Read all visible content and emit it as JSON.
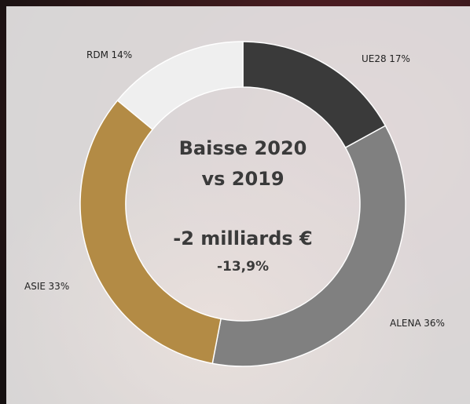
{
  "chart_data": {
    "type": "donut",
    "categories": [
      "UE28",
      "ALENA",
      "ASIE",
      "RDM"
    ],
    "values": [
      17,
      36,
      33,
      14
    ],
    "value_labels": [
      "17%",
      "36%",
      "33%",
      "14%"
    ],
    "colors": [
      "#3a3a3a",
      "#808080",
      "#b38b45",
      "#efefef"
    ],
    "annotations": [
      "Baisse 2020",
      "vs 2019",
      "-2 milliards €",
      "-13,9%"
    ]
  }
}
